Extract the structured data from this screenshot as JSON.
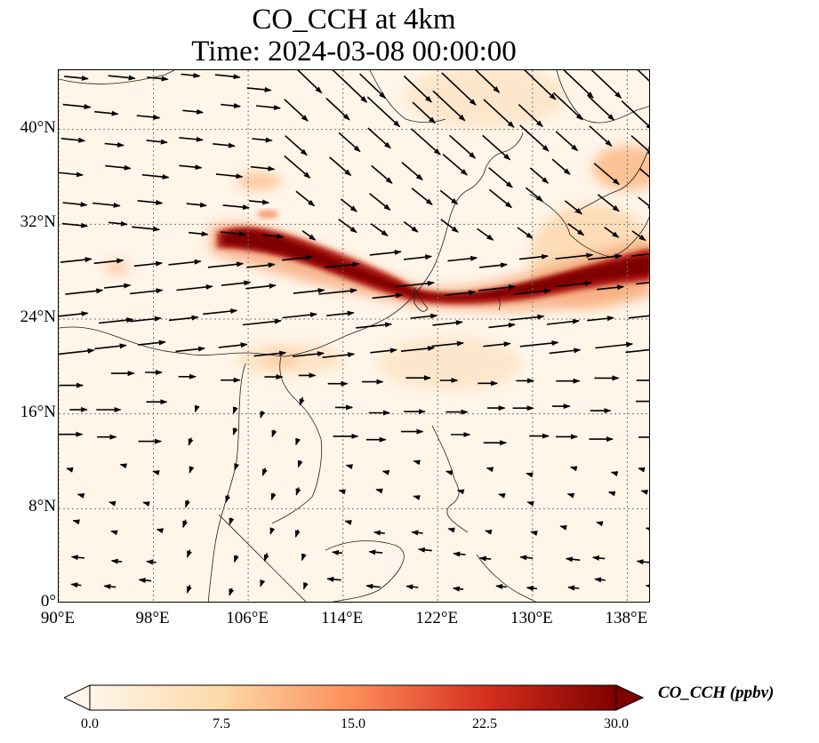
{
  "title": {
    "line1": "CO_CCH at 4km",
    "line2": "Time: 2024-03-08 00:00:00"
  },
  "map": {
    "lon_range": [
      90,
      140
    ],
    "lat_range": [
      0,
      45
    ],
    "lon_ticks": [
      "90°E",
      "98°E",
      "106°E",
      "114°E",
      "122°E",
      "130°E",
      "138°E"
    ],
    "lat_ticks": [
      "0°",
      "8°N",
      "16°N",
      "24°N",
      "32°N",
      "40°N"
    ],
    "gridlines": "dotted",
    "background_color": "#fff5e8",
    "field": "CO concentration with wind vectors",
    "plume": "high CO band from ~104°E, 30°N eastward across Taiwan region to 140°E, 28°N"
  },
  "colorbar": {
    "label": "CO_CCH (ppbv)",
    "ticks": [
      "0.0",
      "7.5",
      "15.0",
      "22.5",
      "30.0"
    ],
    "range": [
      0,
      30
    ],
    "colormap": [
      "#fff5eb",
      "#fdd9a8",
      "#fc8d59",
      "#d7301f",
      "#7f0000"
    ],
    "extend": "both"
  }
}
